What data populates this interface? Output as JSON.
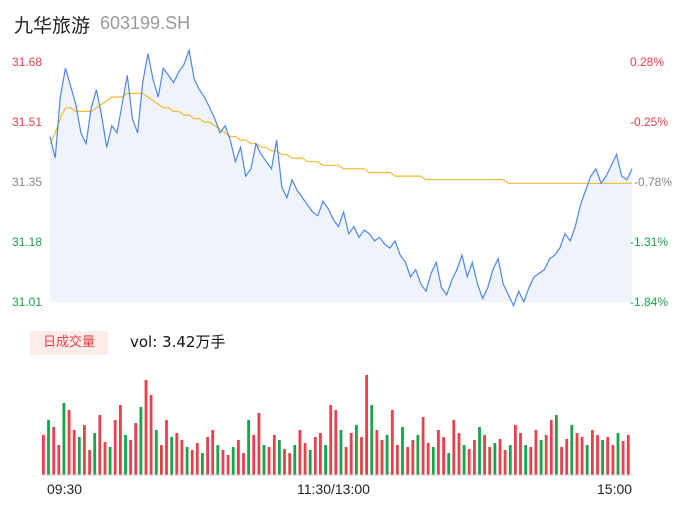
{
  "header": {
    "name": "九华旅游",
    "code": "603199.SH"
  },
  "volume": {
    "badge": "日成交量",
    "text": "vol: 3.42万手"
  },
  "colors": {
    "up": "#e8414b",
    "down": "#1aa34a",
    "flat": "#999999",
    "price_line": "#4f86e8",
    "avg_line": "#f2b933",
    "area": "#eef3fc"
  },
  "chart_data": {
    "type": "line",
    "y_left_labels": [
      "31.68",
      "31.51",
      "31.35",
      "31.18",
      "31.01"
    ],
    "y_right_labels": [
      "0.28%",
      "-0.25%",
      "-0.78%",
      "-1.31%",
      "-1.84%"
    ],
    "ylim": [
      31.01,
      31.68
    ],
    "x_ticks": [
      "09:30",
      "11:30/13:00",
      "15:00"
    ],
    "series": [],
    "price": [
      31.47,
      31.41,
      31.58,
      31.66,
      31.61,
      31.56,
      31.48,
      31.45,
      31.55,
      31.6,
      31.53,
      31.44,
      31.5,
      31.48,
      31.56,
      31.64,
      31.52,
      31.48,
      31.62,
      31.7,
      31.63,
      31.58,
      31.66,
      31.64,
      31.62,
      31.65,
      31.67,
      31.71,
      31.63,
      31.6,
      31.58,
      31.55,
      31.52,
      31.48,
      31.5,
      31.46,
      31.4,
      31.44,
      31.36,
      31.38,
      31.45,
      31.42,
      31.4,
      31.38,
      31.46,
      31.33,
      31.3,
      31.35,
      31.32,
      31.3,
      31.28,
      31.26,
      31.25,
      31.29,
      31.27,
      31.24,
      31.22,
      31.26,
      31.2,
      31.22,
      31.19,
      31.21,
      31.2,
      31.18,
      31.19,
      31.17,
      31.16,
      31.18,
      31.14,
      31.12,
      31.08,
      31.1,
      31.06,
      31.04,
      31.09,
      31.12,
      31.05,
      31.03,
      31.07,
      31.1,
      31.14,
      31.08,
      31.12,
      31.06,
      31.02,
      31.05,
      31.1,
      31.13,
      31.06,
      31.03,
      31.0,
      31.04,
      31.01,
      31.05,
      31.08,
      31.09,
      31.1,
      31.13,
      31.14,
      31.16,
      31.2,
      31.18,
      31.22,
      31.28,
      31.32,
      31.36,
      31.38,
      31.34,
      31.36,
      31.39,
      31.42,
      31.36,
      31.35,
      31.38
    ],
    "avg": [
      31.45,
      31.48,
      31.52,
      31.55,
      31.55,
      31.54,
      31.54,
      31.54,
      31.54,
      31.55,
      31.56,
      31.57,
      31.58,
      31.58,
      31.58,
      31.59,
      31.59,
      31.59,
      31.59,
      31.58,
      31.57,
      31.56,
      31.55,
      31.55,
      31.54,
      31.54,
      31.53,
      31.53,
      31.52,
      31.52,
      31.51,
      31.51,
      31.5,
      31.49,
      31.48,
      31.47,
      31.47,
      31.46,
      31.46,
      31.45,
      31.45,
      31.44,
      31.44,
      31.43,
      31.43,
      31.42,
      31.42,
      31.41,
      31.41,
      31.41,
      31.4,
      31.4,
      31.4,
      31.39,
      31.39,
      31.39,
      31.39,
      31.38,
      31.38,
      31.38,
      31.38,
      31.38,
      31.37,
      31.37,
      31.37,
      31.37,
      31.37,
      31.36,
      31.36,
      31.36,
      31.36,
      31.36,
      31.36,
      31.35,
      31.35,
      31.35,
      31.35,
      31.35,
      31.35,
      31.35,
      31.35,
      31.35,
      31.35,
      31.35,
      31.35,
      31.35,
      31.35,
      31.35,
      31.35,
      31.34,
      31.34,
      31.34,
      31.34,
      31.34,
      31.34,
      31.34,
      31.34,
      31.34,
      31.34,
      31.34,
      31.34,
      31.34,
      31.34,
      31.34,
      31.34,
      31.34,
      31.34,
      31.34,
      31.34,
      31.34,
      31.34,
      31.34,
      31.34,
      31.34
    ],
    "volumes": [
      40,
      55,
      48,
      30,
      72,
      65,
      45,
      38,
      50,
      25,
      42,
      60,
      33,
      28,
      55,
      70,
      40,
      35,
      52,
      68,
      95,
      80,
      45,
      30,
      55,
      38,
      42,
      35,
      28,
      25,
      32,
      22,
      38,
      45,
      30,
      25,
      20,
      28,
      35,
      22,
      55,
      40,
      62,
      30,
      28,
      40,
      35,
      26,
      22,
      30,
      45,
      32,
      25,
      38,
      42,
      30,
      70,
      65,
      45,
      28,
      42,
      50,
      38,
      100,
      70,
      45,
      35,
      40,
      65,
      30,
      48,
      28,
      35,
      40,
      58,
      32,
      28,
      45,
      38,
      22,
      55,
      42,
      30,
      26,
      35,
      48,
      40,
      28,
      32,
      36,
      25,
      30,
      50,
      42,
      30,
      28,
      45,
      35,
      40,
      55,
      60,
      28,
      36,
      50,
      42,
      38,
      30,
      45,
      40,
      35,
      38,
      30,
      42,
      34,
      40
    ]
  }
}
